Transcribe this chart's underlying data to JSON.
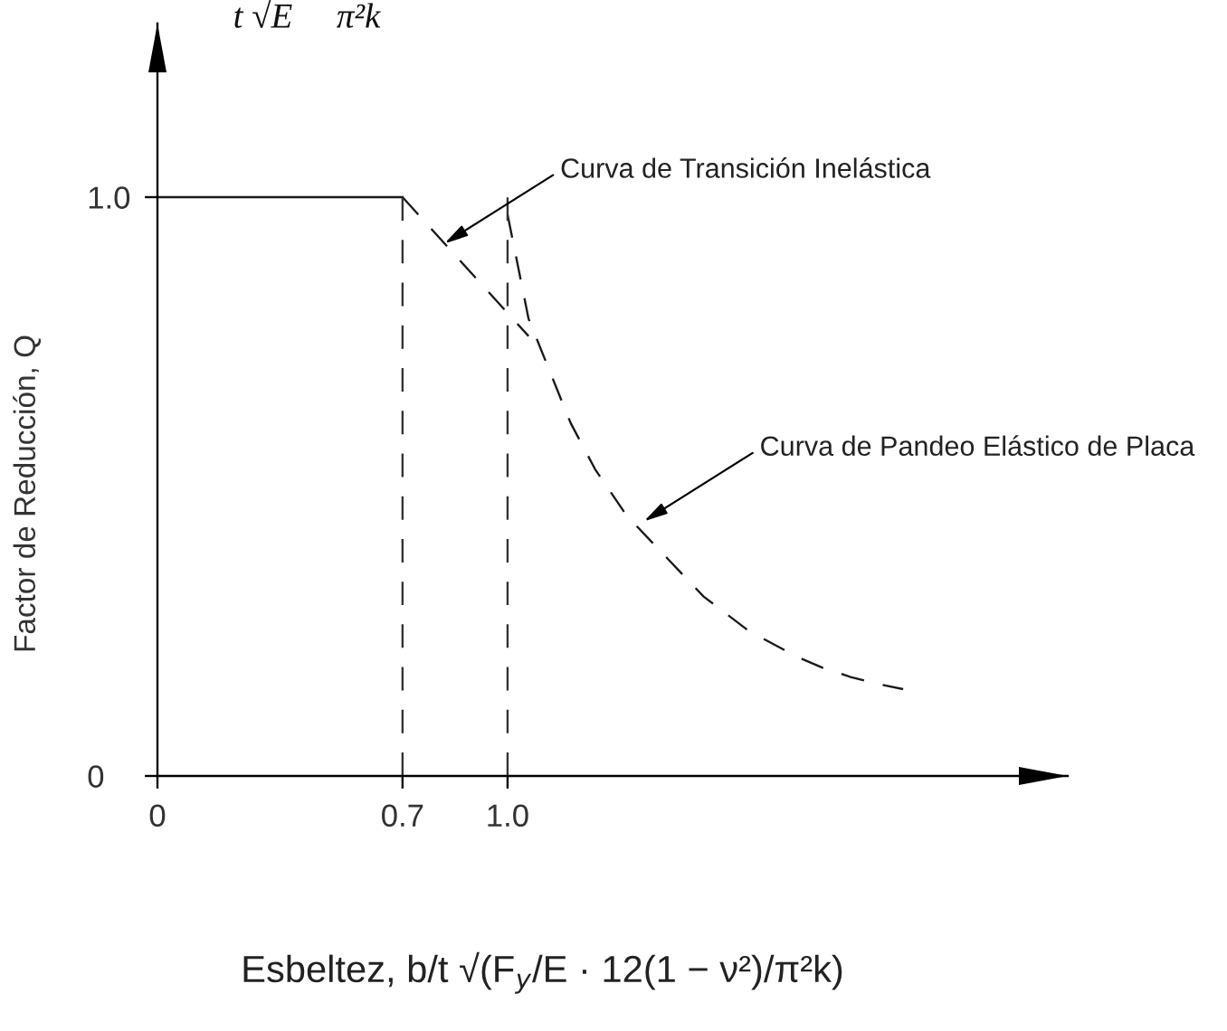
{
  "chart_data": {
    "type": "line",
    "xlabel": "Esbeltez, b/t √(F$_{y}$/E · 12(1 − ν²)/π²k)",
    "ylabel": "Factor de Reducción, Q",
    "xlim": [
      0,
      2.6
    ],
    "ylim": [
      0,
      1.3
    ],
    "xticks": [
      0,
      0.7,
      {
        "value": 1,
        "label": "1.0"
      }
    ],
    "yticks": [
      0,
      {
        "value": 1,
        "label": "1.0"
      }
    ],
    "series": [
      {
        "x": [
          0,
          0.7
        ],
        "values": [
          1.0,
          1.0
        ],
        "color": "#1a1a1a",
        "line_style": "solid"
      },
      {
        "x": [
          0.7,
          1.06
        ],
        "values": [
          1.0,
          0.76
        ],
        "color": "#1a1a1a",
        "line_style": "dashed"
      },
      {
        "x": [
          1.0,
          1.03,
          1.06,
          1.12,
          1.18,
          1.25,
          1.34,
          1.45,
          1.56,
          1.69,
          1.83,
          1.9,
          1.98,
          2.05,
          2.13
        ],
        "values": [
          0.97,
          0.88,
          0.79,
          0.7,
          0.61,
          0.53,
          0.45,
          0.38,
          0.31,
          0.25,
          0.205,
          0.187,
          0.171,
          0.16,
          0.15
        ],
        "color": "#1a1a1a",
        "line_style": "dashed"
      },
      {
        "x": [
          0.7,
          0.7
        ],
        "values": [
          0,
          1.0
        ],
        "color": "#333333",
        "line_style": "dashed"
      },
      {
        "x": [
          1.0,
          1.0
        ],
        "values": [
          0,
          1.0
        ],
        "color": "#333333",
        "line_style": "dashed"
      }
    ],
    "annotations": [
      {
        "text": "Curva de Transición Inelástica",
        "x": 0.82,
        "y": 0.92
      },
      {
        "text": "Curva de Pandeo Elástico de Placa",
        "x": 1.39,
        "y": 0.44
      },
      "t √E     π²k"
    ]
  }
}
